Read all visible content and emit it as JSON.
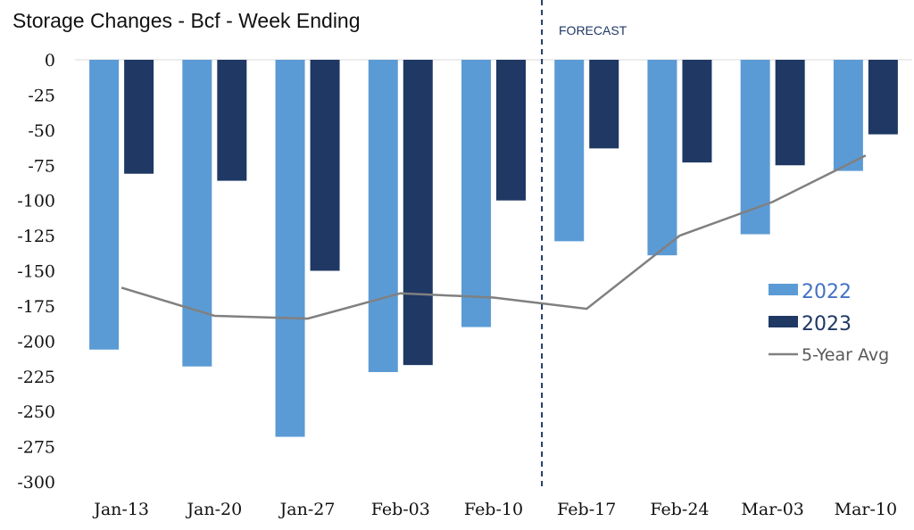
{
  "chart_data": {
    "type": "bar",
    "title": "Storage Changes - Bcf - Week Ending",
    "annotation": "FORECAST",
    "categories": [
      "Jan-13",
      "Jan-20",
      "Jan-27",
      "Feb-03",
      "Feb-10",
      "Feb-17",
      "Feb-24",
      "Mar-03",
      "Mar-10"
    ],
    "forecast_start_index": 5,
    "series": [
      {
        "name": "2022",
        "type": "bar",
        "color": "#5b9bd5",
        "values": [
          -206,
          -218,
          -268,
          -222,
          -190,
          -129,
          -139,
          -124,
          -79
        ]
      },
      {
        "name": "2023",
        "type": "bar",
        "color": "#1f3864",
        "values": [
          -81,
          -86,
          -150,
          -217,
          -100,
          -63,
          -73,
          -75,
          -53
        ]
      },
      {
        "name": "5-Year Avg",
        "type": "line",
        "color": "#808080",
        "values": [
          -162,
          -182,
          -184,
          -166,
          -169,
          -177,
          -125,
          -101,
          -68
        ]
      }
    ],
    "ylim": [
      -300,
      0
    ],
    "yticks": [
      0,
      -25,
      -50,
      -75,
      -100,
      -125,
      -150,
      -175,
      -200,
      -225,
      -250,
      -275,
      -300
    ],
    "legend": "right",
    "grid": false
  }
}
